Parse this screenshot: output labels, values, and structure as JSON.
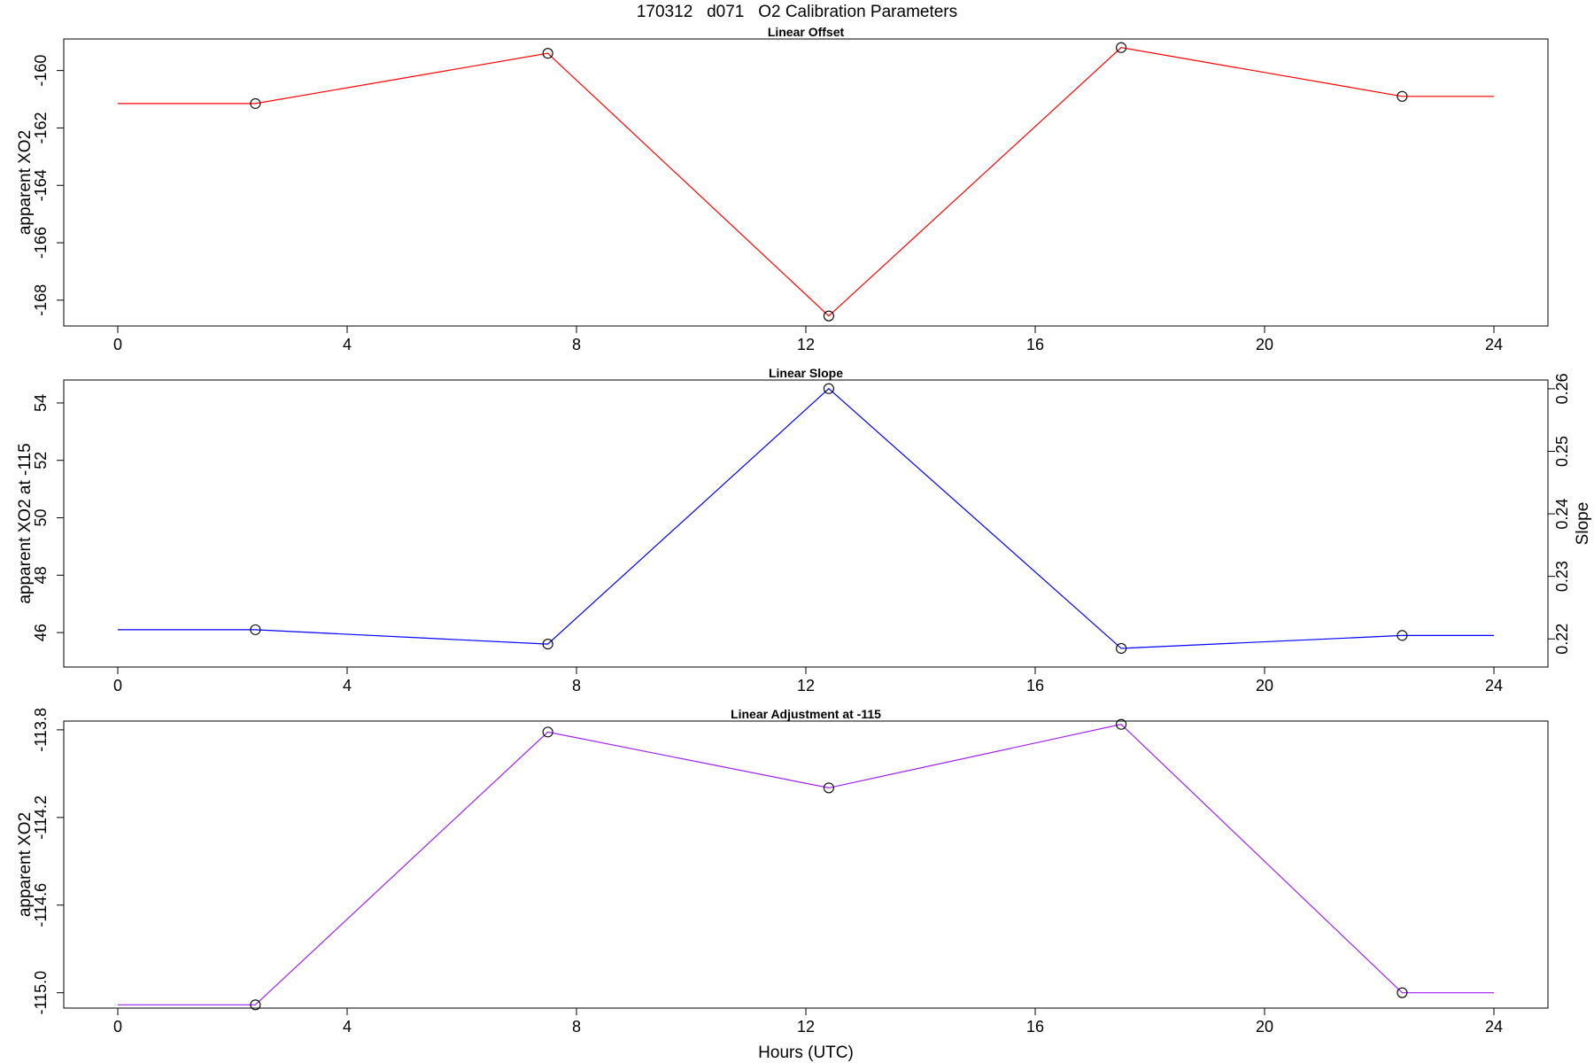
{
  "figure": {
    "title": "170312   d071   O2 Calibration Parameters",
    "xlabel": "Hours (UTC)"
  },
  "chart_data": [
    {
      "type": "line",
      "title": "Linear Offset",
      "xlabel": "",
      "ylabel": "apparent XO2",
      "color": "#ff0000",
      "xlim": [
        0,
        24
      ],
      "ylim": [
        -168.9,
        -158.9
      ],
      "xticks": [
        0,
        4,
        8,
        12,
        16,
        20,
        24
      ],
      "yticks": [
        -160,
        -162,
        -164,
        -166,
        -168
      ],
      "line_x": [
        0,
        2.4,
        7.5,
        12.4,
        17.5,
        22.4,
        24
      ],
      "line_y": [
        -161.15,
        -161.15,
        -159.4,
        -168.55,
        -159.2,
        -160.9,
        -160.9
      ],
      "points_x": [
        2.4,
        7.5,
        12.4,
        17.5,
        22.4
      ],
      "points_y": [
        -161.15,
        -159.4,
        -168.55,
        -159.2,
        -160.9
      ]
    },
    {
      "type": "line",
      "title": "Linear Slope",
      "xlabel": "",
      "ylabel": "apparent XO2 at -115",
      "ylabel_right": "Slope",
      "color": "#0000ff",
      "xlim": [
        0,
        24
      ],
      "ylim": [
        44.8,
        54.8
      ],
      "ylim_right": [
        0.2155,
        0.2614
      ],
      "xticks": [
        0,
        4,
        8,
        12,
        16,
        20,
        24
      ],
      "yticks": [
        46,
        48,
        50,
        52,
        54
      ],
      "yticks_right": [
        "0.22",
        "0.23",
        "0.24",
        "0.25",
        "0.26"
      ],
      "line_x": [
        0,
        2.4,
        7.5,
        12.4,
        17.5,
        22.4,
        24
      ],
      "line_y": [
        46.1,
        46.1,
        45.6,
        54.5,
        45.45,
        45.9,
        45.9
      ],
      "points_x": [
        2.4,
        7.5,
        12.4,
        17.5,
        22.4
      ],
      "points_y": [
        46.1,
        45.6,
        54.5,
        45.45,
        45.9
      ]
    },
    {
      "type": "line",
      "title": "Linear Adjustment at -115",
      "xlabel": "Hours (UTC)",
      "ylabel": "apparent XO2",
      "color": "#a020f0",
      "xlim": [
        0,
        24
      ],
      "ylim": [
        -115.07,
        -113.76
      ],
      "xticks": [
        0,
        4,
        8,
        12,
        16,
        20,
        24
      ],
      "yticks": [
        "-113.8",
        "-114.2",
        "-114.6",
        "-115.0"
      ],
      "line_x": [
        0,
        2.4,
        7.5,
        12.4,
        17.5,
        22.4,
        24
      ],
      "line_y": [
        -115.055,
        -115.055,
        -113.81,
        -114.065,
        -113.775,
        -115.0,
        -115.0
      ],
      "points_x": [
        2.4,
        7.5,
        12.4,
        17.5,
        22.4
      ],
      "points_y": [
        -115.055,
        -113.81,
        -114.065,
        -113.775,
        -115.0
      ]
    }
  ]
}
